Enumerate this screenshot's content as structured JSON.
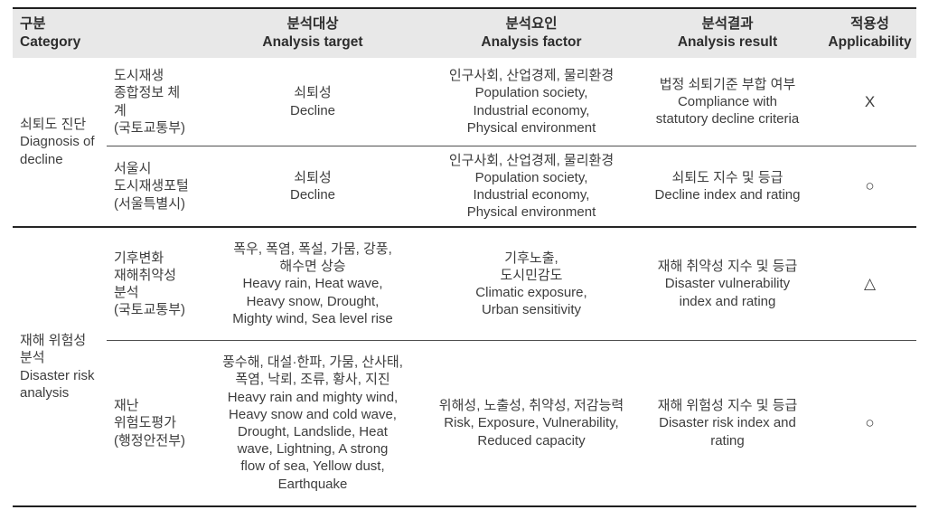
{
  "table": {
    "header": {
      "category": "구분\nCategory",
      "target": "분석대상\nAnalysis target",
      "factor": "분석요인\nAnalysis factor",
      "result": "분석결과\nAnalysis result",
      "applicability": "적용성\nApplicability"
    },
    "groups": [
      {
        "category": "쇠퇴도 진단\nDiagnosis of\ndecline",
        "rows": [
          {
            "system": "도시재생\n종합정보 체계\n(국토교통부)",
            "target": "쇠퇴성\nDecline",
            "factor": "인구사회, 산업경제, 물리환경\nPopulation society,\nIndustrial economy,\nPhysical environment",
            "result": "법정 쇠퇴기준 부합 여부\nCompliance with\nstatutory decline criteria",
            "applicability": "X"
          },
          {
            "system": "서울시\n도시재생포털\n(서울특별시)",
            "target": "쇠퇴성\nDecline",
            "factor": "인구사회, 산업경제, 물리환경\nPopulation society,\nIndustrial economy,\nPhysical environment",
            "result": "쇠퇴도 지수 및 등급\nDecline index and rating",
            "applicability": "○"
          }
        ]
      },
      {
        "category": "재해 위험성\n분석\nDisaster risk\nanalysis",
        "rows": [
          {
            "system": "기후변화\n재해취약성\n분석\n(국토교통부)",
            "target": "폭우, 폭염, 폭설, 가뭄, 강풍,\n해수면 상승\nHeavy rain, Heat wave,\nHeavy snow, Drought,\nMighty wind, Sea level rise",
            "factor": "기후노출,\n도시민감도\nClimatic exposure,\nUrban sensitivity",
            "result": "재해 취약성 지수 및 등급\nDisaster vulnerability\nindex and rating",
            "applicability": "△"
          },
          {
            "system": "재난\n위험도평가\n(행정안전부)",
            "target": "풍수해, 대설·한파, 가뭄, 산사태,\n폭염, 낙뢰, 조류, 황사, 지진\nHeavy rain and mighty wind,\nHeavy snow and cold wave,\nDrought, Landslide, Heat\nwave, Lightning, A strong\nflow of sea, Yellow dust,\nEarthquake",
            "factor": "위해성, 노출성, 취약성, 저감능력\nRisk, Exposure, Vulnerability,\nReduced capacity",
            "result": "재해 위험성 지수 및 등급\nDisaster risk index and\nrating",
            "applicability": "○"
          }
        ]
      }
    ]
  }
}
